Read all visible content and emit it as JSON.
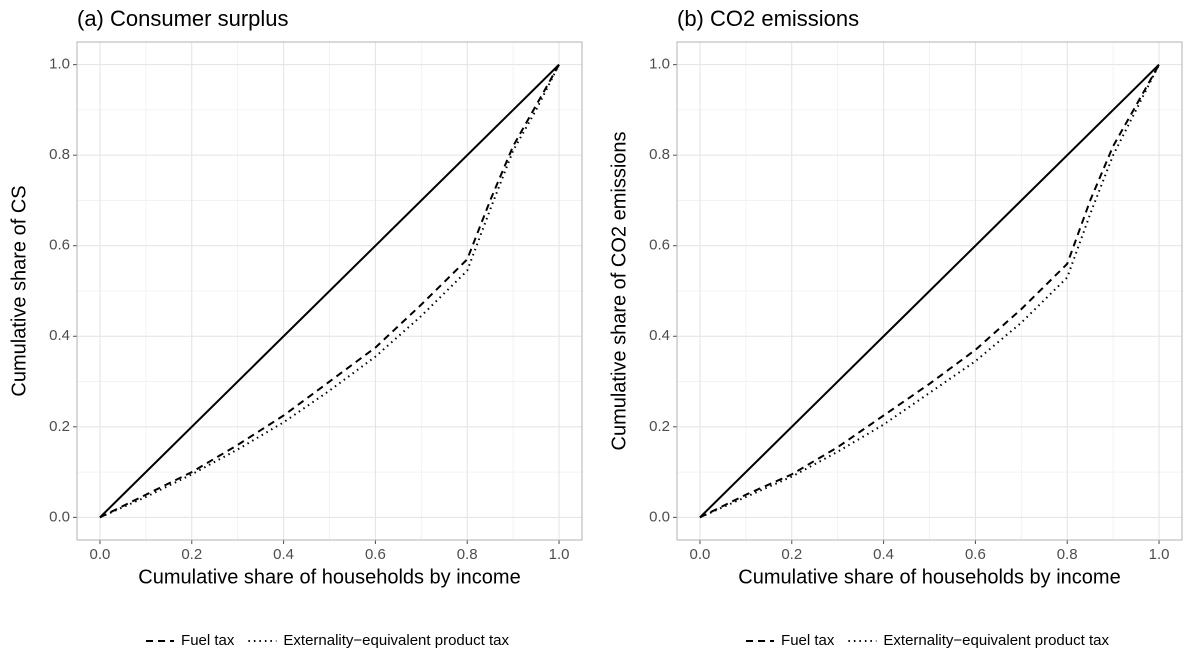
{
  "chart_data": [
    {
      "type": "line",
      "title": "(a) Consumer surplus",
      "x_label": "Cumulative share of households by income",
      "y_label": "Cumulative share of CS",
      "xlim": [
        -0.05,
        1.05
      ],
      "ylim": [
        -0.05,
        1.05
      ],
      "xticks": [
        {
          "value": 0,
          "label": "0.0"
        },
        0.2,
        0.4,
        0.6,
        0.8,
        {
          "value": 1,
          "label": "1.0"
        }
      ],
      "yticks": [
        {
          "value": 0,
          "label": "0.0"
        },
        0.2,
        0.4,
        0.6,
        0.8,
        {
          "value": 1,
          "label": "1.0"
        }
      ],
      "grid": true,
      "minor_grid": true,
      "legend": "bottom",
      "series": [
        {
          "color": "#000000",
          "dash": "solid",
          "x": [
            0,
            1
          ],
          "values": [
            0,
            1
          ]
        },
        {
          "name": "Fuel tax",
          "color": "#000000",
          "dash": "dashed",
          "x": [
            0,
            0.1,
            0.2,
            0.3,
            0.4,
            0.5,
            0.6,
            0.7,
            0.8,
            0.85,
            0.9,
            0.95,
            1
          ],
          "values": [
            0,
            0.05,
            0.1,
            0.16,
            0.225,
            0.3,
            0.375,
            0.47,
            0.57,
            0.7,
            0.82,
            0.91,
            1
          ]
        },
        {
          "name": "Externality−equivalent product tax",
          "color": "#000000",
          "dash": "dotted",
          "x": [
            0,
            0.1,
            0.2,
            0.3,
            0.4,
            0.5,
            0.6,
            0.7,
            0.8,
            0.85,
            0.9,
            0.95,
            1
          ],
          "values": [
            0,
            0.045,
            0.095,
            0.15,
            0.21,
            0.28,
            0.355,
            0.445,
            0.545,
            0.68,
            0.81,
            0.9,
            1
          ]
        }
      ]
    },
    {
      "type": "line",
      "title": "(b) CO2 emissions",
      "x_label": "Cumulative share of households by income",
      "y_label": "Cumulative share of CO2 emissions",
      "xlim": [
        -0.05,
        1.05
      ],
      "ylim": [
        -0.05,
        1.05
      ],
      "xticks": [
        {
          "value": 0,
          "label": "0.0"
        },
        0.2,
        0.4,
        0.6,
        0.8,
        {
          "value": 1,
          "label": "1.0"
        }
      ],
      "yticks": [
        {
          "value": 0,
          "label": "0.0"
        },
        0.2,
        0.4,
        0.6,
        0.8,
        {
          "value": 1,
          "label": "1.0"
        }
      ],
      "grid": true,
      "minor_grid": true,
      "legend": "bottom",
      "series": [
        {
          "color": "#000000",
          "dash": "solid",
          "x": [
            0,
            1
          ],
          "values": [
            0,
            1
          ]
        },
        {
          "name": "Fuel tax",
          "color": "#000000",
          "dash": "dashed",
          "x": [
            0,
            0.1,
            0.2,
            0.3,
            0.4,
            0.5,
            0.6,
            0.7,
            0.8,
            0.85,
            0.9,
            0.95,
            1
          ],
          "values": [
            0,
            0.05,
            0.095,
            0.155,
            0.225,
            0.295,
            0.37,
            0.46,
            0.56,
            0.7,
            0.82,
            0.91,
            1
          ]
        },
        {
          "name": "Externality−equivalent product tax",
          "color": "#000000",
          "dash": "dotted",
          "x": [
            0,
            0.1,
            0.2,
            0.3,
            0.4,
            0.5,
            0.6,
            0.7,
            0.8,
            0.85,
            0.9,
            0.95,
            1
          ],
          "values": [
            0,
            0.045,
            0.09,
            0.145,
            0.205,
            0.275,
            0.345,
            0.43,
            0.53,
            0.67,
            0.8,
            0.9,
            1
          ]
        }
      ]
    }
  ]
}
